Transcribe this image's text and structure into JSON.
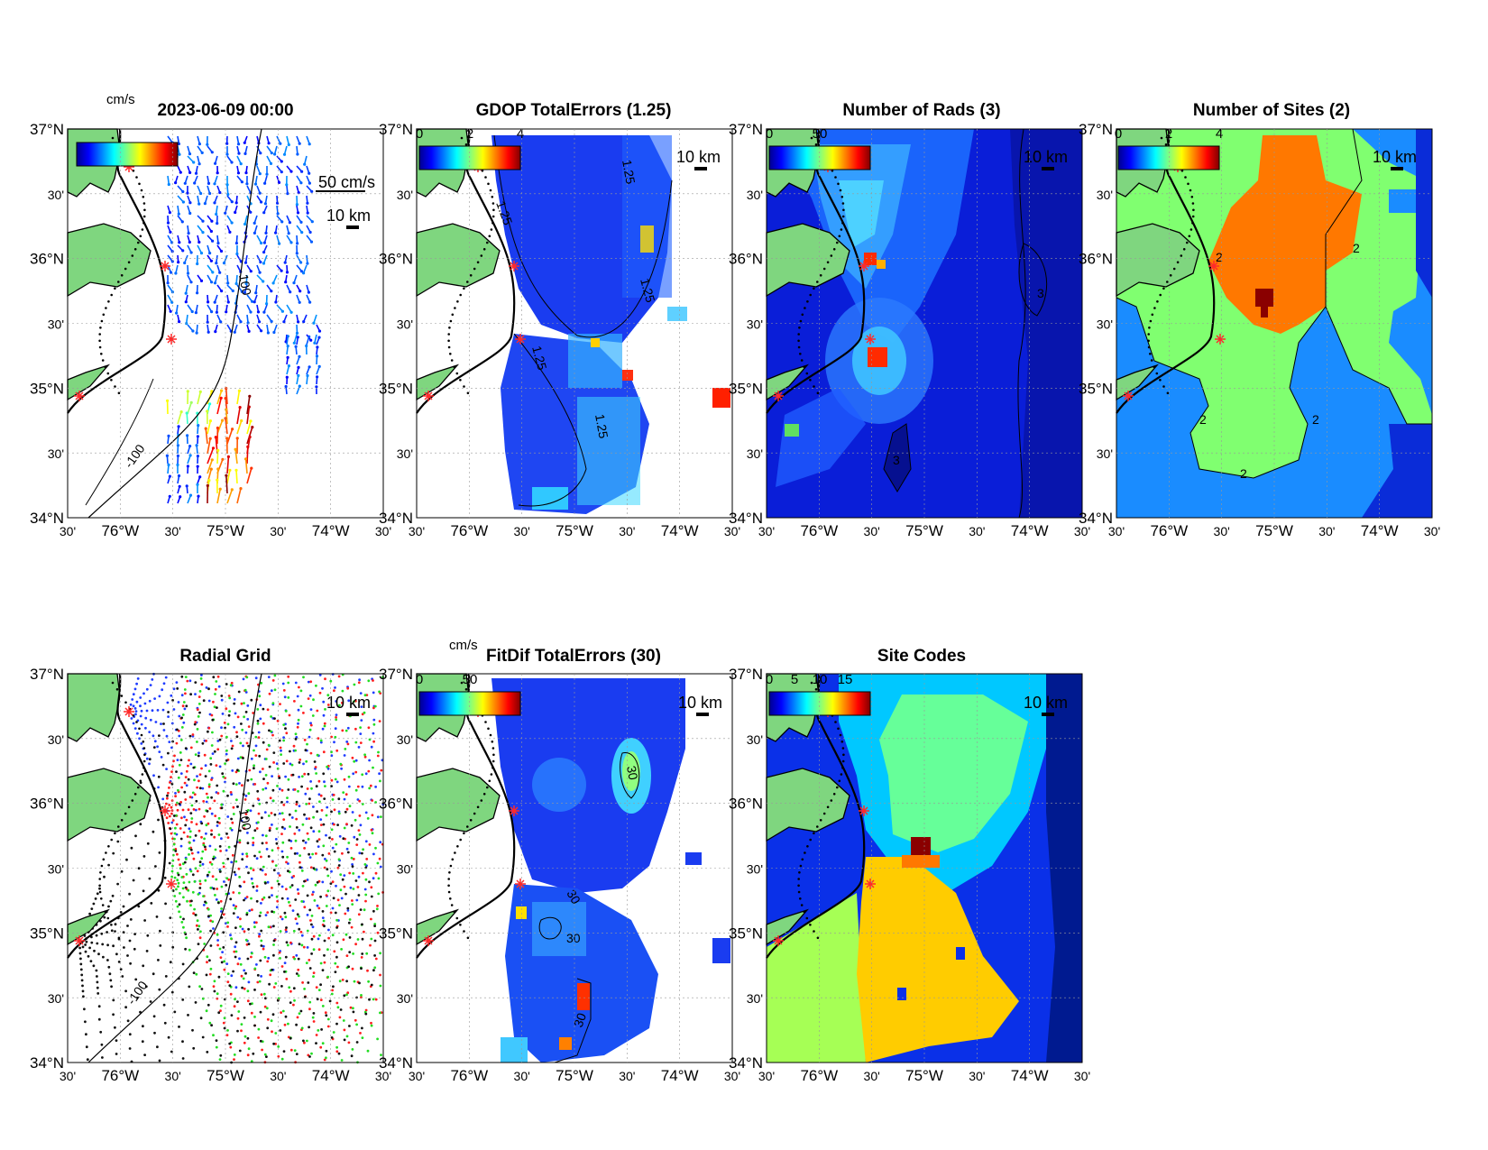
{
  "figure": {
    "axis": {
      "lat_labels": [
        "37°N",
        "30'",
        "36°N",
        "30'",
        "35°N",
        "30'",
        "34°N"
      ],
      "lon_labels": [
        "30'",
        "76°W",
        "30'",
        "75°W",
        "30'",
        "74°W",
        "30'"
      ],
      "lat_range": [
        34,
        37
      ],
      "lon_range": [
        -76.5,
        -73.5
      ]
    },
    "scale_bar_label": "10 km",
    "land_color": "#7fd67f",
    "site_marker_color": "#ff2a2a",
    "panels": [
      {
        "id": "totals",
        "title": "2023-06-09 00:00",
        "colorbar_units": "cm/s",
        "colorbar_ticks": [],
        "vector_scale_label": "50 cm/s",
        "contour_labels": [
          "100",
          "-100"
        ]
      },
      {
        "id": "gdop",
        "title": "GDOP TotalErrors (1.25)",
        "colorbar_units": "",
        "colorbar_ticks": [
          "0",
          "2",
          "4"
        ],
        "contour_labels": [
          "1.25",
          "1.25",
          "1.25",
          "1.25",
          "1.25"
        ]
      },
      {
        "id": "nrads",
        "title": "Number of Rads (3)",
        "colorbar_units": "",
        "colorbar_ticks": [
          "0",
          "50"
        ],
        "contour_labels": [
          "3",
          "3"
        ]
      },
      {
        "id": "nsites",
        "title": "Number of Sites (2)",
        "colorbar_units": "",
        "colorbar_ticks": [
          "0",
          "2",
          "4"
        ],
        "contour_labels": [
          "2",
          "2",
          "2",
          "2",
          "2"
        ]
      },
      {
        "id": "radgrid",
        "title": "Radial Grid",
        "colorbar_units": "",
        "colorbar_ticks": [],
        "contour_labels": [
          "100",
          "-100"
        ]
      },
      {
        "id": "fitdif",
        "title": "FitDif TotalErrors (30)",
        "colorbar_units": "cm/s",
        "colorbar_ticks": [
          "0",
          "50"
        ],
        "contour_labels": [
          "30",
          "30",
          "30",
          "30"
        ]
      },
      {
        "id": "sitecodes",
        "title": "Site Codes",
        "colorbar_units": "",
        "colorbar_ticks": [
          "0",
          "5",
          "10",
          "15"
        ],
        "contour_labels": []
      }
    ]
  }
}
